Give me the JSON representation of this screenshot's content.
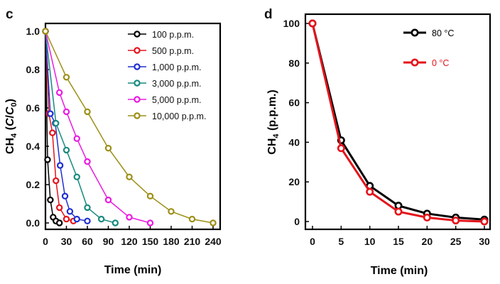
{
  "chart_data": [
    {
      "type": "line",
      "panel_label": "c",
      "xlabel": "Time (min)",
      "ylabel_prefix": "CH",
      "ylabel_sub": "4",
      "ylabel_paren_open": " (",
      "ylabel_C": "C",
      "ylabel_slash": "/",
      "ylabel_C0": "C",
      "ylabel_C0_sub": "0",
      "ylabel_paren_close": ")",
      "xlim": [
        0,
        240
      ],
      "ylim": [
        0,
        1.0
      ],
      "xticks": [
        0,
        30,
        60,
        90,
        120,
        150,
        180,
        210,
        240
      ],
      "yticks": [
        "0.0",
        "0.2",
        "0.4",
        "0.6",
        "0.8",
        "1.0"
      ],
      "legend_position": "top-right",
      "series": [
        {
          "name": "100 p.p.m.",
          "color": "#000000",
          "x": [
            0,
            3,
            7,
            11,
            15,
            20
          ],
          "y": [
            1.0,
            0.33,
            0.12,
            0.03,
            0.01,
            0.0
          ]
        },
        {
          "name": "500 p.p.m.",
          "color": "#e4141b",
          "x": [
            0,
            5,
            10,
            15,
            20,
            30,
            40
          ],
          "y": [
            1.0,
            0.57,
            0.47,
            0.22,
            0.08,
            0.02,
            0.01
          ]
        },
        {
          "name": "1,000 p.p.m.",
          "color": "#1f2fd1",
          "x": [
            0,
            7,
            14,
            21,
            28,
            35,
            45,
            60
          ],
          "y": [
            1.0,
            0.57,
            0.52,
            0.3,
            0.14,
            0.06,
            0.02,
            0.01
          ]
        },
        {
          "name": "3,000 p.p.m.",
          "color": "#178a7e",
          "x": [
            0,
            15,
            30,
            45,
            60,
            80,
            100
          ],
          "y": [
            1.0,
            0.52,
            0.38,
            0.24,
            0.08,
            0.02,
            0.0
          ]
        },
        {
          "name": "5,000 p.p.m.",
          "color": "#ea1be0",
          "x": [
            0,
            20,
            30,
            45,
            60,
            90,
            120,
            150
          ],
          "y": [
            1.0,
            0.68,
            0.58,
            0.44,
            0.32,
            0.12,
            0.03,
            0.0
          ]
        },
        {
          "name": "10,000 p.p.m.",
          "color": "#9c8f16",
          "x": [
            0,
            30,
            60,
            90,
            120,
            150,
            180,
            210,
            240
          ],
          "y": [
            1.0,
            0.76,
            0.58,
            0.39,
            0.24,
            0.14,
            0.06,
            0.02,
            0.0
          ]
        }
      ]
    },
    {
      "type": "line",
      "panel_label": "d",
      "xlabel": "Time (min)",
      "ylabel_prefix": "CH",
      "ylabel_sub": "4",
      "ylabel_rest": " (p.p.m.)",
      "xlim": [
        0,
        30
      ],
      "ylim": [
        0,
        100
      ],
      "xticks": [
        0,
        5,
        10,
        15,
        20,
        25,
        30
      ],
      "yticks": [
        0,
        20,
        40,
        60,
        80,
        100
      ],
      "legend_position": "top-right",
      "series": [
        {
          "name": "80 °C",
          "color": "#000000",
          "x": [
            0,
            5,
            10,
            15,
            20,
            25,
            30
          ],
          "y": [
            100,
            41,
            18,
            8,
            4,
            2,
            1
          ]
        },
        {
          "name": "0 °C",
          "color": "#e4141b",
          "x": [
            0,
            5,
            10,
            15,
            20,
            25,
            30
          ],
          "y": [
            100,
            37,
            15,
            5,
            2,
            0.5,
            0
          ]
        }
      ]
    }
  ]
}
